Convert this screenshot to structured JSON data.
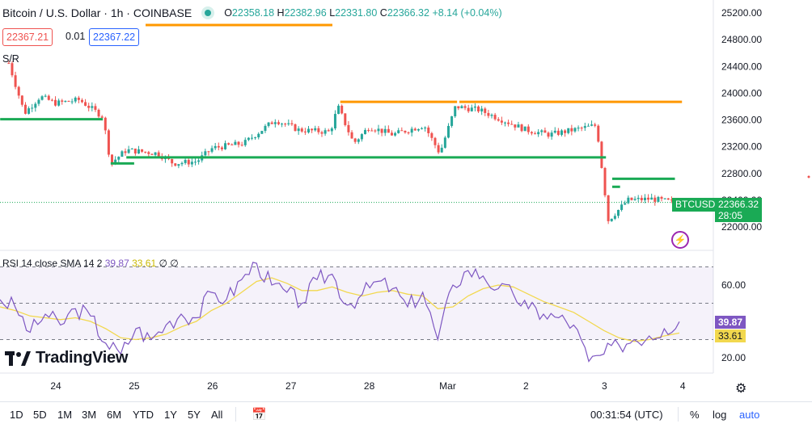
{
  "header": {
    "symbol": "Bitcoin / U.S. Dollar · 1h · COINBASE",
    "o_label": "O",
    "o": "22358.18",
    "h_label": "H",
    "h": "22382.96",
    "l_label": "L",
    "l": "22331.80",
    "c_label": "C",
    "c": "22366.32",
    "change": "+8.14 (+0.04%)"
  },
  "quote": {
    "sell": "22367.21",
    "spread": "0.01",
    "buy": "22367.22"
  },
  "indicator_sr": "S/R",
  "rsi_label": {
    "name": "RSI 14 close SMA 14 2",
    "v1": "39.87",
    "v2": "33.61",
    "extra": "∅ ∅"
  },
  "price_tag": {
    "symbol": "BTCUSD",
    "price": "22366.32",
    "countdown": "28:05"
  },
  "rsi_tags": {
    "rsi": "39.87",
    "sma": "33.61"
  },
  "logo_text": "TradingView",
  "bottom": {
    "ranges": [
      "1D",
      "5D",
      "1M",
      "3M",
      "6M",
      "YTD",
      "1Y",
      "5Y",
      "All"
    ],
    "clock": "00:31:54 (UTC)",
    "pct": "%",
    "log": "log",
    "auto": "auto"
  },
  "colors": {
    "up": "#26a69a",
    "down": "#ef5350",
    "rsi": "#7e57c2",
    "sma": "#f2d84e",
    "support": "#1aaa55",
    "resistance": "#ff9800"
  },
  "chart_data": [
    {
      "type": "candlestick",
      "title": "Bitcoin / U.S. Dollar · 1h · COINBASE",
      "x_ticks": [
        "24",
        "25",
        "26",
        "27",
        "28",
        "Mar",
        "2",
        "3",
        "4"
      ],
      "y_ticks": [
        22000,
        22400,
        22800,
        23200,
        23600,
        24000,
        24400,
        24800,
        25200
      ],
      "ylim": [
        21900,
        25300
      ],
      "last_price": 22366.32,
      "support_levels": [
        23610,
        23040,
        22720
      ],
      "resistance_levels": [
        23870
      ],
      "close_path": [
        {
          "x": "23.4",
          "y": 24450
        },
        {
          "x": "23.6",
          "y": 23700
        },
        {
          "x": "23.8",
          "y": 23950
        },
        {
          "x": "24.0",
          "y": 23850
        },
        {
          "x": "24.3",
          "y": 23900
        },
        {
          "x": "24.6",
          "y": 23650
        },
        {
          "x": "24.7",
          "y": 22950
        },
        {
          "x": "24.9",
          "y": 23150
        },
        {
          "x": "25.3",
          "y": 23100
        },
        {
          "x": "25.5",
          "y": 22950
        },
        {
          "x": "25.8",
          "y": 22980
        },
        {
          "x": "26.0",
          "y": 23180
        },
        {
          "x": "26.4",
          "y": 23250
        },
        {
          "x": "26.8",
          "y": 23600
        },
        {
          "x": "27.1",
          "y": 23450
        },
        {
          "x": "27.5",
          "y": 23420
        },
        {
          "x": "27.6",
          "y": 23800
        },
        {
          "x": "27.8",
          "y": 23250
        },
        {
          "x": "28.0",
          "y": 23500
        },
        {
          "x": "28.3",
          "y": 23380
        },
        {
          "x": "28.7",
          "y": 23520
        },
        {
          "x": "28.9",
          "y": 23100
        },
        {
          "x": "29.1",
          "y": 23800
        },
        {
          "x": "29.4",
          "y": 23750
        },
        {
          "x": "29.7",
          "y": 23600
        },
        {
          "x": "30.0",
          "y": 23450
        },
        {
          "x": "30.3",
          "y": 23380
        },
        {
          "x": "30.6",
          "y": 23450
        },
        {
          "x": "30.9",
          "y": 23520
        },
        {
          "x": "31.05",
          "y": 22100
        },
        {
          "x": "31.3",
          "y": 22400
        },
        {
          "x": "31.6",
          "y": 22420
        },
        {
          "x": "31.9",
          "y": 22366
        }
      ]
    },
    {
      "type": "line",
      "title": "RSI 14 close SMA 14 2",
      "y_ticks": [
        20,
        60
      ],
      "bands": [
        30,
        50,
        70
      ],
      "series": [
        {
          "name": "RSI",
          "values": [
            52,
            48,
            34,
            44,
            38,
            47,
            43,
            28,
            22,
            36,
            30,
            38,
            44,
            42,
            56,
            52,
            63,
            72,
            60,
            56,
            50,
            63,
            66,
            49,
            55,
            62,
            58,
            48,
            56,
            30,
            60,
            68,
            65,
            58,
            55,
            47,
            44,
            42,
            38,
            18,
            22,
            27,
            30,
            32,
            36,
            39.87
          ]
        },
        {
          "name": "SMA",
          "values": [
            48,
            46,
            43,
            42,
            41,
            42,
            40,
            36,
            31,
            30,
            31,
            33,
            37,
            40,
            46,
            50,
            56,
            62,
            64,
            61,
            57,
            57,
            59,
            56,
            54,
            56,
            57,
            55,
            54,
            47,
            48,
            54,
            58,
            60,
            59,
            55,
            51,
            48,
            45,
            40,
            35,
            31,
            29,
            30,
            32,
            33.61
          ]
        }
      ]
    }
  ]
}
